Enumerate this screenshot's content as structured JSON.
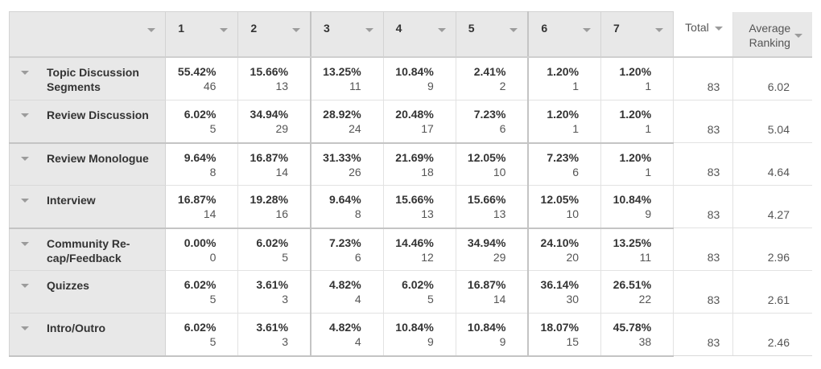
{
  "header": {
    "columns": [
      "1",
      "2",
      "3",
      "4",
      "5",
      "6",
      "7"
    ],
    "total_label": "Total",
    "average_label": "Average Ranking"
  },
  "rows": [
    {
      "label": "Topic Discussion Segments",
      "pcts": [
        "55.42%",
        "15.66%",
        "13.25%",
        "10.84%",
        "2.41%",
        "1.20%",
        "1.20%"
      ],
      "counts": [
        "46",
        "13",
        "11",
        "9",
        "2",
        "1",
        "1"
      ],
      "total": "83",
      "average": "6.02"
    },
    {
      "label": "Review Discussion",
      "pcts": [
        "6.02%",
        "34.94%",
        "28.92%",
        "20.48%",
        "7.23%",
        "1.20%",
        "1.20%"
      ],
      "counts": [
        "5",
        "29",
        "24",
        "17",
        "6",
        "1",
        "1"
      ],
      "total": "83",
      "average": "5.04"
    },
    {
      "label": "Review Monologue",
      "pcts": [
        "9.64%",
        "16.87%",
        "31.33%",
        "21.69%",
        "12.05%",
        "7.23%",
        "1.20%"
      ],
      "counts": [
        "8",
        "14",
        "26",
        "18",
        "10",
        "6",
        "1"
      ],
      "total": "83",
      "average": "4.64"
    },
    {
      "label": "Interview",
      "pcts": [
        "16.87%",
        "19.28%",
        "9.64%",
        "15.66%",
        "15.66%",
        "12.05%",
        "10.84%"
      ],
      "counts": [
        "14",
        "16",
        "8",
        "13",
        "13",
        "10",
        "9"
      ],
      "total": "83",
      "average": "4.27"
    },
    {
      "label": "Community Re-cap/Feedback",
      "pcts": [
        "0.00%",
        "6.02%",
        "7.23%",
        "14.46%",
        "34.94%",
        "24.10%",
        "13.25%"
      ],
      "counts": [
        "0",
        "5",
        "6",
        "12",
        "29",
        "20",
        "11"
      ],
      "total": "83",
      "average": "2.96"
    },
    {
      "label": "Quizzes",
      "pcts": [
        "6.02%",
        "3.61%",
        "4.82%",
        "6.02%",
        "16.87%",
        "36.14%",
        "26.51%"
      ],
      "counts": [
        "5",
        "3",
        "4",
        "5",
        "14",
        "30",
        "22"
      ],
      "total": "83",
      "average": "2.61"
    },
    {
      "label": "Intro/Outro",
      "pcts": [
        "6.02%",
        "3.61%",
        "4.82%",
        "10.84%",
        "10.84%",
        "18.07%",
        "45.78%"
      ],
      "counts": [
        "5",
        "3",
        "4",
        "9",
        "9",
        "15",
        "38"
      ],
      "total": "83",
      "average": "2.46"
    }
  ]
}
